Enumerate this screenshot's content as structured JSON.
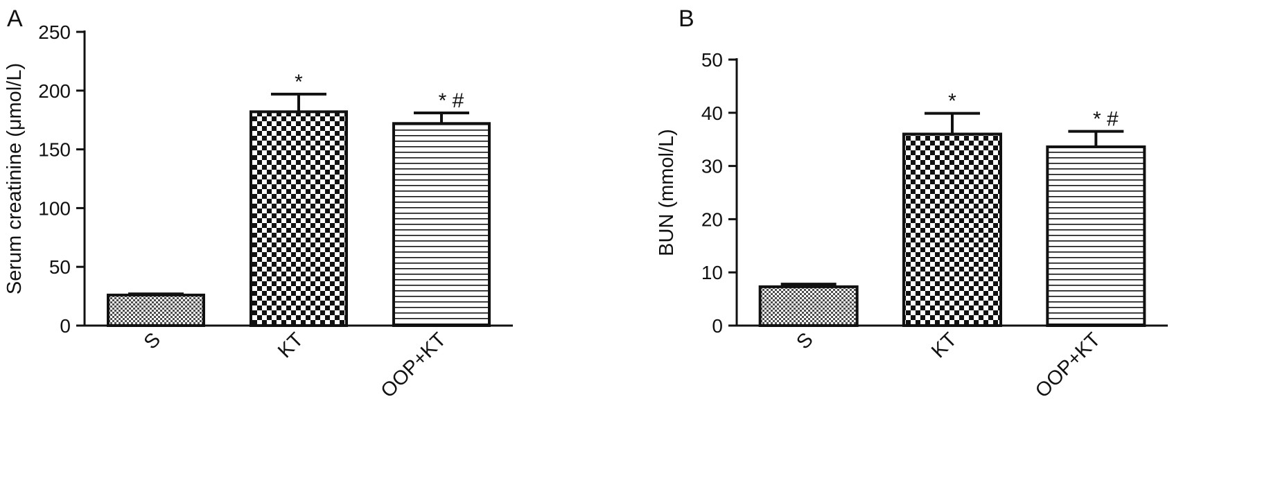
{
  "panels": [
    {
      "letter": "A"
    },
    {
      "letter": "B"
    }
  ],
  "chart_data": [
    {
      "type": "bar",
      "panel": "A",
      "categories": [
        "S",
        "KT",
        "OOP+KT"
      ],
      "values": [
        26,
        182,
        172
      ],
      "errors": [
        1,
        15,
        9
      ],
      "annotations": [
        "",
        "*",
        "* #"
      ],
      "patterns": [
        "dense-check",
        "checker",
        "horizontal-lines"
      ],
      "xlabel": "",
      "ylabel": "Serum creatinine (μmol/L)",
      "ylim": [
        0,
        250
      ],
      "yticks": [
        0,
        50,
        100,
        150,
        200,
        250
      ],
      "grid": false,
      "colors": {
        "bar_stroke": "#111111",
        "bar_fill": "#ffffff",
        "pattern": "#111111"
      }
    },
    {
      "type": "bar",
      "panel": "B",
      "categories": [
        "S",
        "KT",
        "OOP+KT"
      ],
      "values": [
        7.3,
        36,
        33.6
      ],
      "errors": [
        0.5,
        3.9,
        2.9
      ],
      "annotations": [
        "",
        "*",
        "* #"
      ],
      "patterns": [
        "dense-check",
        "checker",
        "horizontal-lines"
      ],
      "xlabel": "",
      "ylabel": "BUN (mmol/L)",
      "ylim": [
        0,
        50
      ],
      "yticks": [
        0,
        10,
        20,
        30,
        40,
        50
      ],
      "grid": false,
      "colors": {
        "bar_stroke": "#111111",
        "bar_fill": "#ffffff",
        "pattern": "#111111"
      }
    }
  ]
}
